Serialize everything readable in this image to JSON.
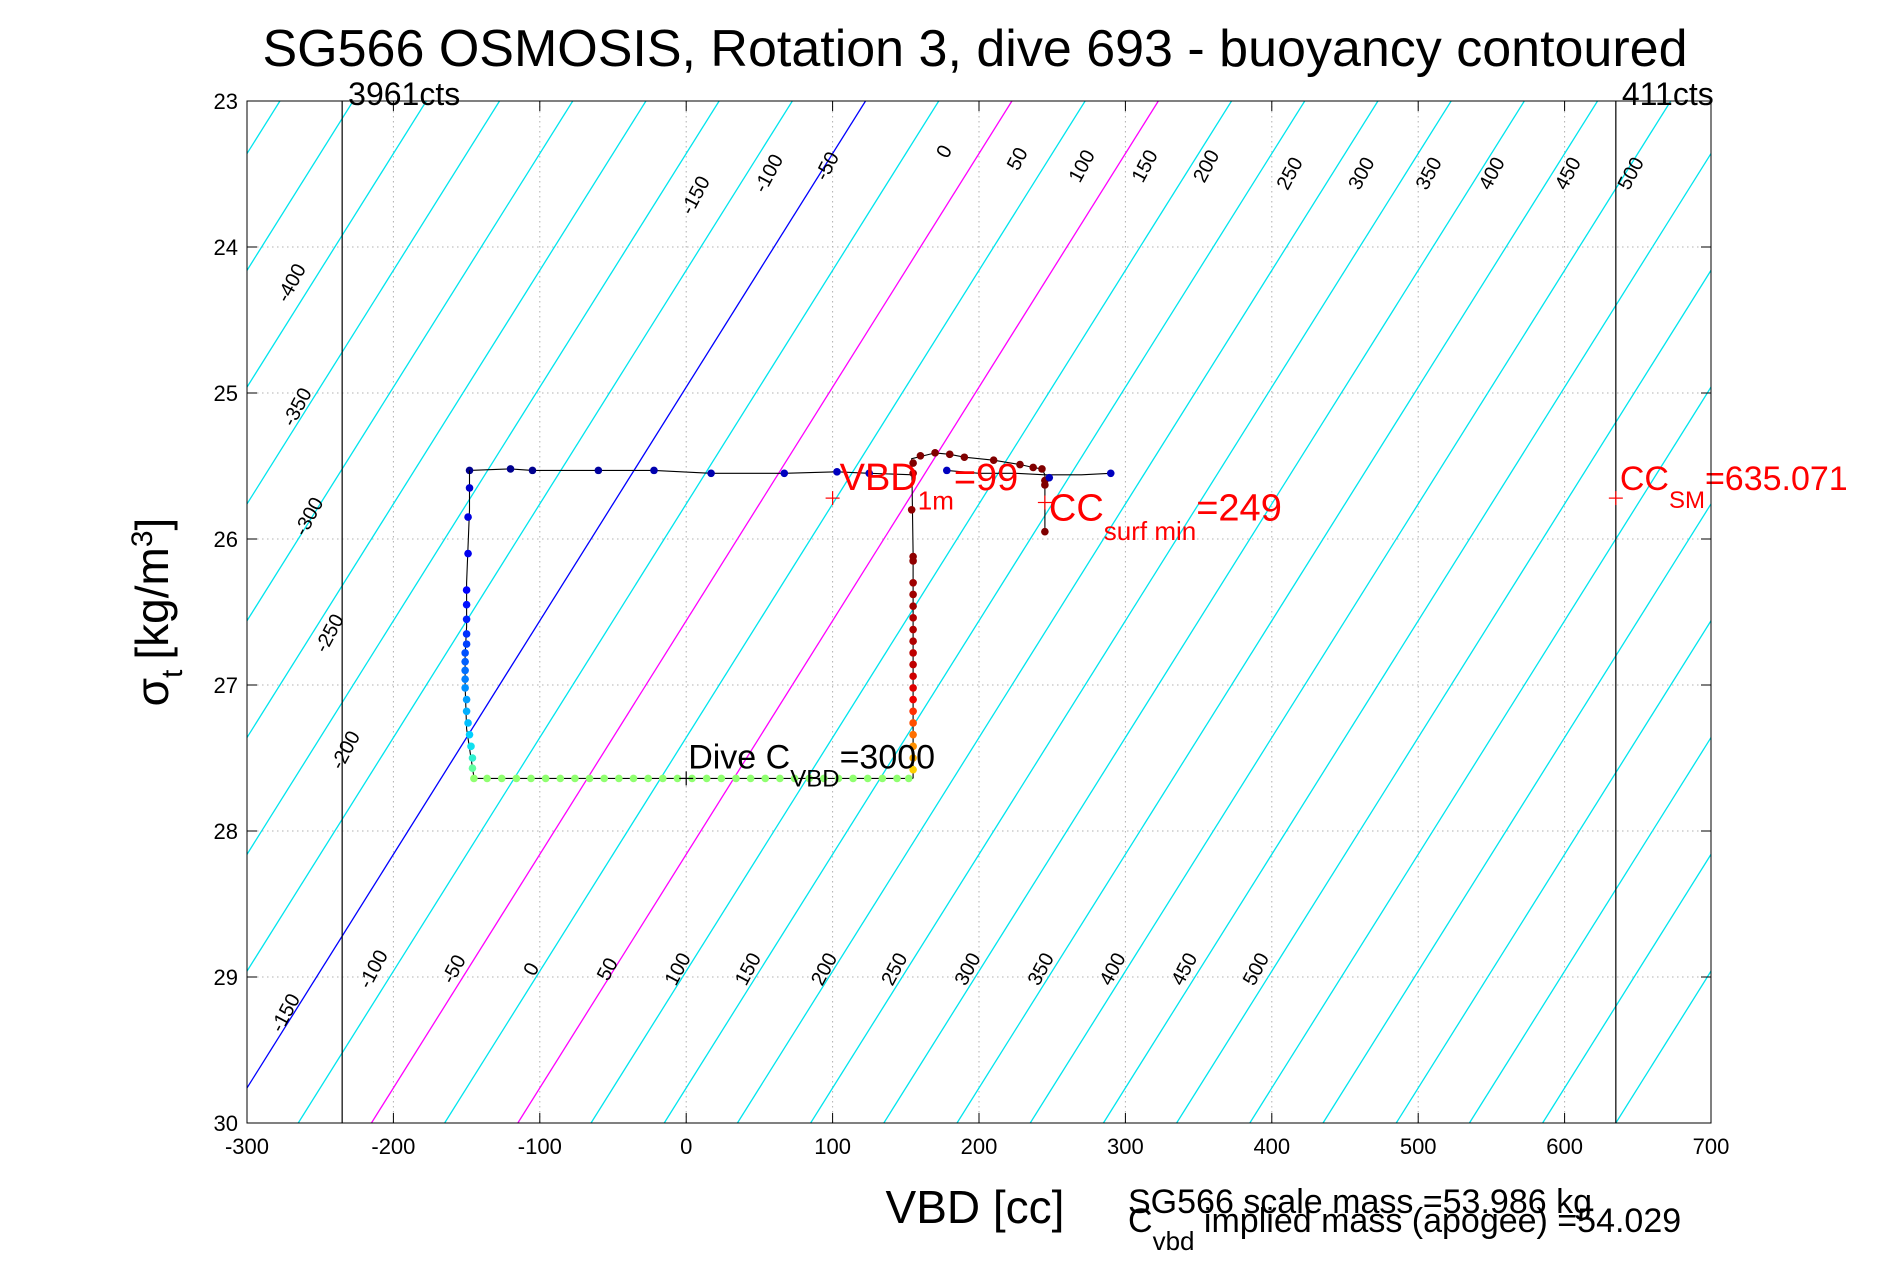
{
  "chart_data": {
    "type": "scatter",
    "title": "SG566 OSMOSIS, Rotation 3, dive 693 - buoyancy contoured",
    "xlabel": "VBD [cc]",
    "ylabel_main": "σ",
    "ylabel_sub": "t",
    "ylabel_rest": "[kg/m",
    "ylabel_sup": "3",
    "ylabel_end": "]",
    "xlim": [
      -300,
      700
    ],
    "ylim": [
      23,
      30
    ],
    "y_reversed": true,
    "grid": true,
    "x_ticks": [
      -300,
      -200,
      -100,
      0,
      100,
      200,
      300,
      400,
      500,
      600,
      700
    ],
    "x_tick_labels": [
      "-300",
      "-200",
      "-100",
      "0",
      "100",
      "200",
      "300",
      "400",
      "500",
      "600",
      "700"
    ],
    "y_ticks": [
      23,
      24,
      25,
      26,
      27,
      28,
      29,
      30
    ],
    "y_tick_labels": [
      "23",
      "24",
      "25",
      "26",
      "27",
      "28",
      "29",
      "30"
    ],
    "buoyancy_contours": {
      "slope_vbd_per_sigma": -62.5,
      "vbd_at_sigma_26": [
        -465,
        -415,
        -365,
        -315,
        -265,
        -215,
        -165,
        -115,
        -65,
        -15,
        35,
        85,
        135,
        185,
        235,
        285,
        335,
        385,
        435,
        485,
        535,
        585,
        635,
        685,
        735,
        785,
        835,
        885
      ],
      "zero_index": 8,
      "colors": {
        "zero": "#0000ff",
        "highlight": "#ff00ff",
        "other": "#00e5ee"
      },
      "highlight_values": [
        100,
        200
      ],
      "top_labels": [
        "-150",
        "-100",
        "-50",
        "0",
        "50",
        "100",
        "150",
        "200",
        "250",
        "300",
        "350",
        "400",
        "450",
        "500"
      ],
      "top_label_points": [
        [
          7,
          23.65
        ],
        [
          57,
          23.5
        ],
        [
          97,
          23.45
        ],
        [
          177,
          23.35
        ],
        [
          227,
          23.4
        ],
        [
          271,
          23.45
        ],
        [
          314,
          23.45
        ],
        [
          356,
          23.45
        ],
        [
          413,
          23.5
        ],
        [
          462,
          23.5
        ],
        [
          508,
          23.5
        ],
        [
          551,
          23.5
        ],
        [
          603,
          23.5
        ],
        [
          646,
          23.5
        ]
      ],
      "left_labels": [
        "-400",
        "-350",
        "-300",
        "-250",
        "-200"
      ],
      "left_label_points": [
        [
          -269,
          24.25
        ],
        [
          -265,
          25.1
        ],
        [
          -257,
          25.85
        ],
        [
          -243,
          26.65
        ],
        [
          -232,
          27.45
        ]
      ],
      "bottom_labels": [
        "-150",
        "-100",
        "-50",
        "0",
        "50",
        "100",
        "150",
        "200",
        "250",
        "300",
        "350",
        "400",
        "450",
        "500"
      ],
      "bottom_label_points": [
        [
          -273,
          29.25
        ],
        [
          -213,
          28.95
        ],
        [
          -158,
          28.95
        ],
        [
          -105,
          28.95
        ],
        [
          -53,
          28.95
        ],
        [
          -5,
          28.95
        ],
        [
          43,
          28.95
        ],
        [
          95,
          28.95
        ],
        [
          143,
          28.95
        ],
        [
          193,
          28.95
        ],
        [
          243,
          28.95
        ],
        [
          292,
          28.95
        ],
        [
          341,
          28.95
        ],
        [
          390,
          28.95
        ]
      ]
    },
    "vertical_lines": [
      {
        "x": -235,
        "label": "3961cts"
      },
      {
        "x": 635,
        "label": "411cts"
      }
    ],
    "series": [
      {
        "segment": "descent-top",
        "line": [
          [
            -148,
            25.53
          ],
          [
            -120,
            25.52
          ],
          [
            -105,
            25.53
          ],
          [
            -60,
            25.53
          ],
          [
            -22,
            25.53
          ],
          [
            17,
            25.55
          ],
          [
            67,
            25.55
          ],
          [
            103,
            25.54
          ],
          [
            125,
            25.55
          ],
          [
            155,
            25.56
          ]
        ],
        "points": [
          [
            -148,
            25.53
          ],
          [
            -120,
            25.52
          ],
          [
            -105,
            25.53
          ],
          [
            -60,
            25.53
          ],
          [
            -22,
            25.53
          ],
          [
            17,
            25.55
          ],
          [
            67,
            25.55
          ],
          [
            103,
            25.54
          ],
          [
            125,
            25.55
          ]
        ],
        "colors": [
          "#00008f",
          "#00008f",
          "#00008f",
          "#00009f",
          "#0000af",
          "#0000af",
          "#0000bf",
          "#0000bf",
          "#0000bf"
        ]
      },
      {
        "segment": "descent-water",
        "line": [
          [
            -148,
            25.53
          ],
          [
            -148,
            25.8
          ],
          [
            -150,
            26.3
          ],
          [
            -150,
            26.6
          ],
          [
            -151,
            26.8
          ],
          [
            -151,
            27.0
          ],
          [
            -150,
            27.3
          ],
          [
            -147,
            27.5
          ],
          [
            -145,
            27.63
          ]
        ],
        "points": [
          [
            -148,
            25.65
          ],
          [
            -149,
            25.85
          ],
          [
            -149,
            26.1
          ],
          [
            -150,
            26.35
          ],
          [
            -150,
            26.45
          ],
          [
            -150,
            26.55
          ],
          [
            -150,
            26.65
          ],
          [
            -150,
            26.72
          ],
          [
            -151,
            26.78
          ],
          [
            -151,
            26.84
          ],
          [
            -151,
            26.9
          ],
          [
            -151,
            26.96
          ],
          [
            -151,
            27.02
          ],
          [
            -150,
            27.1
          ],
          [
            -150,
            27.18
          ],
          [
            -149,
            27.26
          ],
          [
            -148,
            27.34
          ],
          [
            -147,
            27.42
          ],
          [
            -146,
            27.5
          ],
          [
            -146,
            27.57
          ]
        ],
        "colors": [
          "#0000cf",
          "#0000df",
          "#0000ef",
          "#0000ff",
          "#0010ff",
          "#0020ff",
          "#0030ff",
          "#0040ff",
          "#0050ff",
          "#0060ff",
          "#0070ff",
          "#0080ff",
          "#0090ff",
          "#00a0ff",
          "#00b0ff",
          "#00c0ff",
          "#00d0ff",
          "#10e0ef",
          "#30f0cf",
          "#60ffa0"
        ]
      },
      {
        "segment": "apogee",
        "line": [
          [
            -145,
            27.64
          ],
          [
            155,
            27.64
          ]
        ],
        "points": [
          [
            -145,
            27.64
          ],
          [
            -136,
            27.64
          ],
          [
            -126,
            27.64
          ],
          [
            -116,
            27.64
          ],
          [
            -106,
            27.64
          ],
          [
            -96,
            27.64
          ],
          [
            -86,
            27.64
          ],
          [
            -76,
            27.64
          ],
          [
            -66,
            27.64
          ],
          [
            -56,
            27.64
          ],
          [
            -46,
            27.64
          ],
          [
            -36,
            27.64
          ],
          [
            -26,
            27.64
          ],
          [
            -16,
            27.64
          ],
          [
            -6,
            27.64
          ],
          [
            4,
            27.64
          ],
          [
            14,
            27.64
          ],
          [
            24,
            27.64
          ],
          [
            34,
            27.64
          ],
          [
            44,
            27.64
          ],
          [
            54,
            27.64
          ],
          [
            64,
            27.64
          ],
          [
            74,
            27.64
          ],
          [
            84,
            27.64
          ],
          [
            94,
            27.64
          ],
          [
            104,
            27.64
          ],
          [
            114,
            27.64
          ],
          [
            124,
            27.64
          ],
          [
            134,
            27.64
          ],
          [
            144,
            27.64
          ],
          [
            152,
            27.64
          ]
        ],
        "colors": [
          "#90ff70",
          "#90ff70",
          "#90ff70",
          "#90ff70",
          "#90ff70",
          "#90ff70",
          "#90ff70",
          "#90ff70",
          "#90ff70",
          "#90ff70",
          "#90ff70",
          "#90ff70",
          "#90ff70",
          "#90ff70",
          "#90ff70",
          "#90ff70",
          "#90ff70",
          "#90ff70",
          "#90ff70",
          "#90ff70",
          "#90ff70",
          "#90ff70",
          "#90ff70",
          "#90ff70",
          "#90ff70",
          "#90ff70",
          "#90ff70",
          "#90ff70",
          "#90ff70",
          "#90ff70",
          "#90ff70"
        ]
      },
      {
        "segment": "climb-water",
        "line": [
          [
            155,
            27.64
          ],
          [
            155,
            26.1
          ],
          [
            154,
            25.45
          ],
          [
            170,
            25.41
          ],
          [
            180,
            25.42
          ],
          [
            190,
            25.44
          ],
          [
            210,
            25.46
          ],
          [
            228,
            25.49
          ],
          [
            237,
            25.51
          ],
          [
            243,
            25.52
          ],
          [
            245,
            25.56
          ],
          [
            245,
            25.95
          ]
        ],
        "points": [
          [
            155,
            27.58
          ],
          [
            155,
            27.5
          ],
          [
            155,
            27.42
          ],
          [
            155,
            27.34
          ],
          [
            155,
            27.26
          ],
          [
            155,
            27.18
          ],
          [
            155,
            27.1
          ],
          [
            155,
            27.02
          ],
          [
            155,
            26.94
          ],
          [
            155,
            26.86
          ],
          [
            155,
            26.78
          ],
          [
            155,
            26.7
          ],
          [
            155,
            26.62
          ],
          [
            155,
            26.54
          ],
          [
            155,
            26.46
          ],
          [
            155,
            26.38
          ],
          [
            155,
            26.3
          ],
          [
            155,
            26.15
          ],
          [
            155,
            26.12
          ],
          [
            154,
            25.8
          ],
          [
            155,
            25.55
          ],
          [
            155,
            25.48
          ],
          [
            160,
            25.43
          ],
          [
            170,
            25.41
          ],
          [
            180,
            25.42
          ],
          [
            190,
            25.44
          ],
          [
            210,
            25.46
          ],
          [
            228,
            25.49
          ],
          [
            237,
            25.51
          ],
          [
            243,
            25.52
          ],
          [
            245,
            25.6
          ],
          [
            245,
            25.63
          ],
          [
            245,
            25.95
          ]
        ],
        "colors": [
          "#ffcf00",
          "#ffaf00",
          "#ff8f00",
          "#ff6f00",
          "#ff4f00",
          "#ff2f00",
          "#ef0000",
          "#df0000",
          "#cf0000",
          "#bf0000",
          "#bf0000",
          "#af0000",
          "#af0000",
          "#af0000",
          "#a00000",
          "#a00000",
          "#a00000",
          "#900000",
          "#900000",
          "#900000",
          "#900000",
          "#800000",
          "#800000",
          "#800000",
          "#800000",
          "#800000",
          "#800000",
          "#800000",
          "#800000",
          "#800000",
          "#800000",
          "#800000",
          "#800000"
        ]
      },
      {
        "segment": "surface",
        "line": [
          [
            178,
            25.53
          ],
          [
            200,
            25.55
          ],
          [
            225,
            25.55
          ],
          [
            245,
            25.56
          ],
          [
            270,
            25.56
          ],
          [
            290,
            25.55
          ]
        ],
        "points": [
          [
            178,
            25.53
          ],
          [
            248,
            25.58
          ],
          [
            290,
            25.55
          ]
        ],
        "colors": [
          "#0000bf",
          "#0000bf",
          "#0000bf"
        ]
      }
    ],
    "annotations": [
      {
        "id": "vbd1m",
        "marker": [
          100,
          25.72
        ],
        "main": "VBD",
        "sub": "1m",
        "value": "=99",
        "color": "#ff0000"
      },
      {
        "id": "ccsurf",
        "marker": [
          245,
          25.75
        ],
        "main": "CC",
        "sub": "surf min",
        "value": "=249",
        "color": "#ff0000"
      },
      {
        "id": "ccsm",
        "marker": [
          635,
          25.72
        ],
        "main": "CC",
        "sub": "SM",
        "value": "=635.071",
        "color": "#ff0000"
      },
      {
        "id": "divec",
        "marker": [
          0,
          27.64
        ],
        "main": "Dive C",
        "sub": "VBD",
        "value": "=3000",
        "color": "#000000"
      }
    ],
    "footer": {
      "scale_mass": "SG566 scale mass =53.986 kg",
      "implied_main": "C",
      "implied_sub": "vbd",
      "implied_rest": " implied mass (apogee) =54.029"
    }
  }
}
